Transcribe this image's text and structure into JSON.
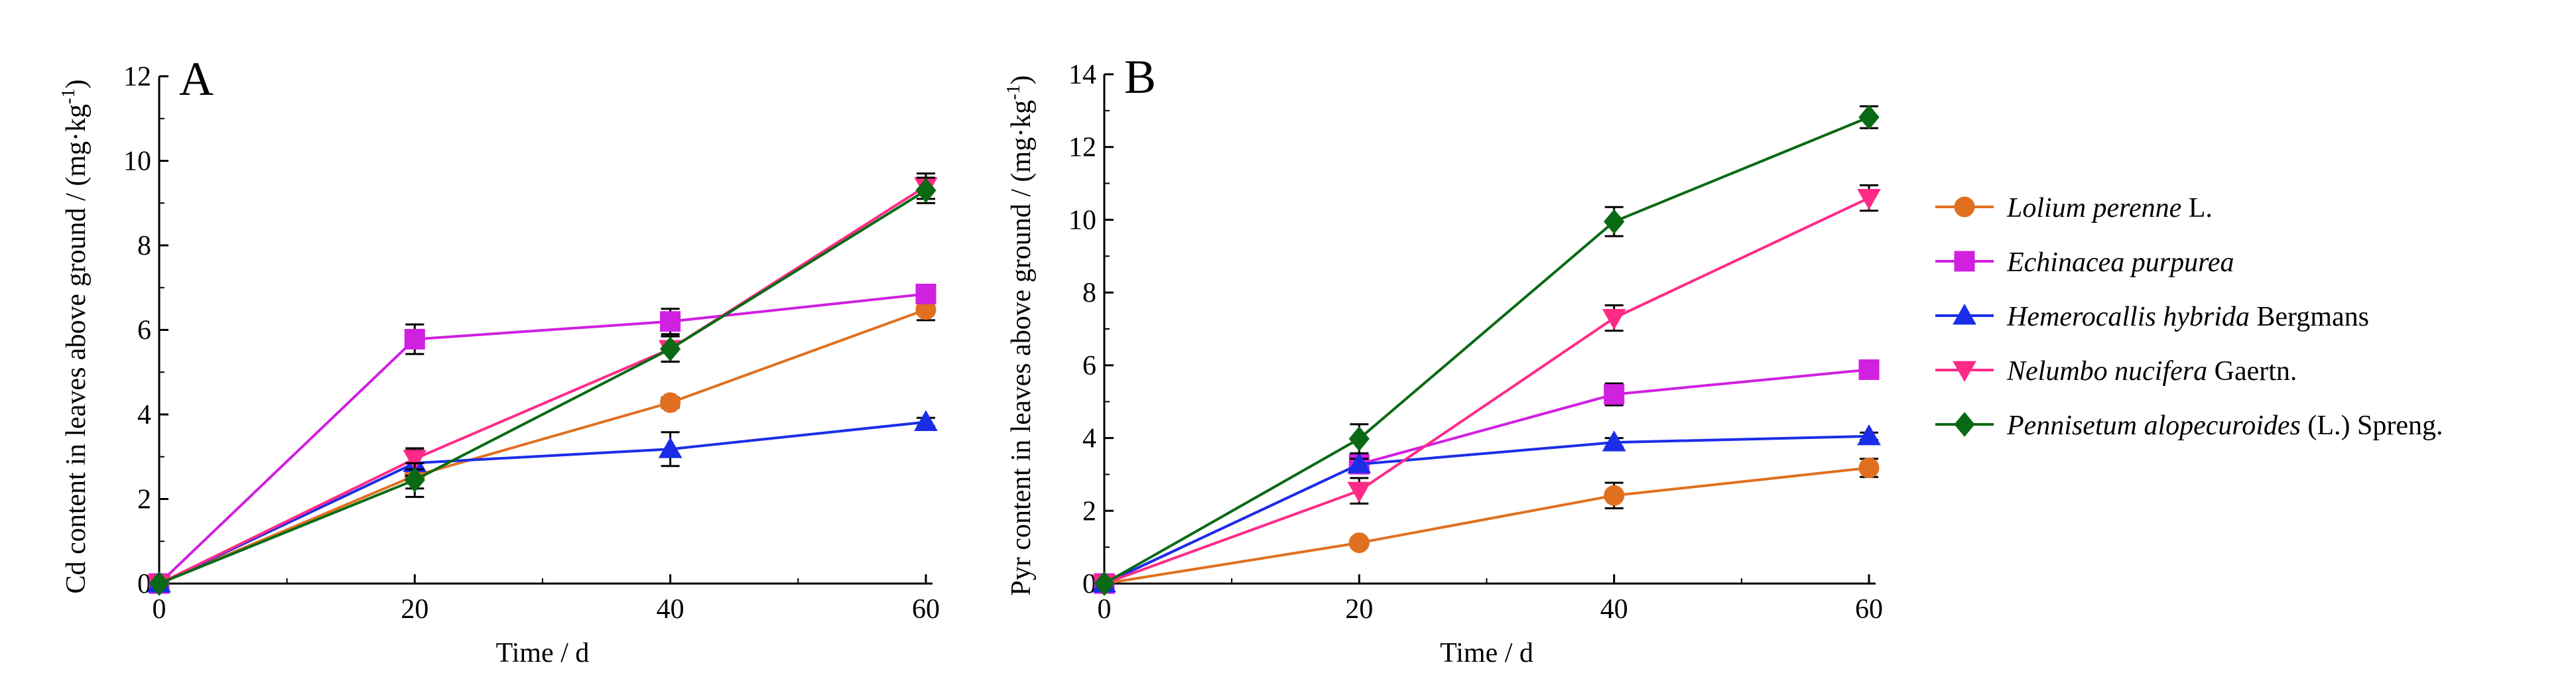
{
  "chart_data": [
    {
      "type": "line",
      "panel_label": "A",
      "xlabel": "Time / d",
      "ylabel": "Cd content in leaves above ground / (mg·kg",
      "ylabel_sup": "-1",
      "ylabel_close": ")",
      "x": [
        0,
        20,
        40,
        60
      ],
      "x_ticks": [
        0,
        20,
        40,
        60
      ],
      "y_ticks": [
        0,
        2,
        4,
        6,
        8,
        10,
        12
      ],
      "xlim": [
        0,
        60
      ],
      "ylim": [
        0,
        12
      ],
      "series": [
        {
          "key": "lolium",
          "values": [
            0,
            2.55,
            4.28,
            6.48
          ],
          "errors": [
            0.05,
            0.3,
            0.12,
            0.25
          ]
        },
        {
          "key": "echinacea",
          "values": [
            0,
            5.78,
            6.2,
            6.85
          ],
          "errors": [
            0.05,
            0.35,
            0.3,
            0.2
          ]
        },
        {
          "key": "hemerocallis",
          "values": [
            0,
            2.85,
            3.18,
            3.82
          ],
          "errors": [
            0.05,
            0.3,
            0.4,
            0.1
          ]
        },
        {
          "key": "nelumbo",
          "values": [
            0,
            2.95,
            5.55,
            9.4
          ],
          "errors": [
            0.05,
            0.25,
            0.3,
            0.3
          ]
        },
        {
          "key": "pennisetum",
          "values": [
            0,
            2.45,
            5.55,
            9.3
          ],
          "errors": [
            0.05,
            0.4,
            0.3,
            0.3
          ]
        }
      ]
    },
    {
      "type": "line",
      "panel_label": "B",
      "xlabel": "Time / d",
      "ylabel": "Pyr content in leaves above ground / (mg·kg",
      "ylabel_sup": "-1",
      "ylabel_close": ")",
      "x": [
        0,
        20,
        40,
        60
      ],
      "x_ticks": [
        0,
        20,
        40,
        60
      ],
      "y_ticks": [
        0,
        2,
        4,
        6,
        8,
        10,
        12,
        14
      ],
      "xlim": [
        0,
        60
      ],
      "ylim": [
        0,
        14
      ],
      "series": [
        {
          "key": "lolium",
          "values": [
            0,
            1.12,
            2.42,
            3.18
          ],
          "errors": [
            0.05,
            0.1,
            0.35,
            0.25
          ]
        },
        {
          "key": "echinacea",
          "values": [
            0,
            3.28,
            5.2,
            5.88
          ],
          "errors": [
            0.05,
            0.2,
            0.3,
            0.25
          ]
        },
        {
          "key": "hemerocallis",
          "values": [
            0,
            3.28,
            3.88,
            4.05
          ],
          "errors": [
            0.05,
            0.15,
            0.12,
            0.1
          ]
        },
        {
          "key": "nelumbo",
          "values": [
            0,
            2.55,
            7.3,
            10.6
          ],
          "errors": [
            0.05,
            0.35,
            0.35,
            0.35
          ]
        },
        {
          "key": "pennisetum",
          "values": [
            0,
            3.98,
            9.95,
            12.82
          ],
          "errors": [
            0.05,
            0.4,
            0.4,
            0.3
          ]
        }
      ]
    }
  ],
  "legend": [
    {
      "key": "lolium",
      "italic": "Lolium perenne",
      "rest": " L.",
      "color": "#e07020",
      "marker": "circle"
    },
    {
      "key": "echinacea",
      "italic": "Echinacea purpurea",
      "rest": "",
      "color": "#d020e0",
      "marker": "square"
    },
    {
      "key": "hemerocallis",
      "italic": "Hemerocallis hybrida",
      "rest": " Bergmans",
      "color": "#1a2ee8",
      "marker": "triangle-up"
    },
    {
      "key": "nelumbo",
      "italic": "Nelumbo nucifera",
      "rest": " Gaertn.",
      "color": "#ff2a88",
      "marker": "triangle-down"
    },
    {
      "key": "pennisetum",
      "italic": "Pennisetum alopecuroides",
      "rest": " (L.) Spreng.",
      "color": "#0a6a14",
      "marker": "diamond"
    }
  ]
}
